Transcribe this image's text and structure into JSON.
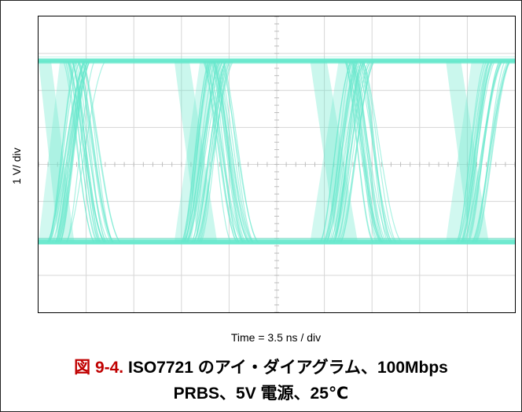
{
  "chart_data": {
    "type": "line",
    "title": "",
    "ylabel": "1 V/ div",
    "xlabel": "Time = 3.5 ns / div",
    "grid": true,
    "grid_divisions": {
      "x": 10,
      "y": 8
    },
    "trace_color": "#66e8cc",
    "eye_diagram": {
      "high_level_div": 6.8,
      "low_level_div": 1.9,
      "unit_interval_div": 2.86,
      "transition_starts_div": [
        0.15,
        0.5,
        3.0,
        3.45,
        5.9,
        6.4,
        8.75
      ]
    }
  },
  "caption": {
    "figure_number": "図 9-4.",
    "line1": "ISO7721 のアイ・ダイアグラム、100Mbps",
    "line2": "PRBS、5V 電源、25℃"
  }
}
